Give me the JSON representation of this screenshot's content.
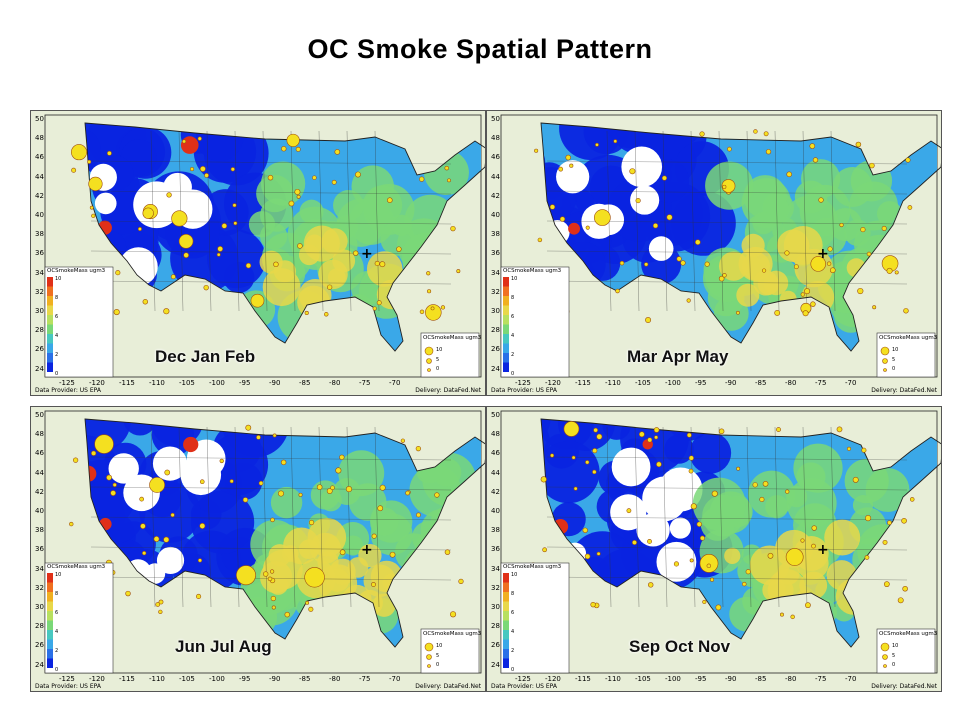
{
  "title": "OC Smoke Spatial Pattern",
  "panels": [
    {
      "season": "Dec Jan Feb"
    },
    {
      "season": "Mar Apr May"
    },
    {
      "season": "Jun Jul Aug"
    },
    {
      "season": "Sep Oct Nov"
    }
  ],
  "map": {
    "y_ticks": [
      "50",
      "48",
      "46",
      "44",
      "42",
      "40",
      "38",
      "36",
      "34",
      "32",
      "30",
      "28",
      "26",
      "24"
    ],
    "x_ticks": [
      "-125",
      "-120",
      "-115",
      "-110",
      "-105",
      "-100",
      "-95",
      "-90",
      "-85",
      "-80",
      "-75",
      "-70"
    ],
    "provider": "Data Provider: US EPA",
    "delivery": "Delivery: DataFed.Net",
    "colorbar_title": "OCSmokeMass ugm3",
    "colorbar_ticks": [
      "10",
      "8",
      "6",
      "4",
      "2",
      "0"
    ],
    "size_legend_title": "OCSmokeMass ugm3",
    "size_legend_values": [
      "10",
      "5",
      "0"
    ]
  },
  "colors": {
    "background": "#e8eed8",
    "low": "#0a24e0",
    "mid_low": "#3aa8e8",
    "mid": "#7ad878",
    "mid_high": "#e8d84a",
    "high": "#e03018"
  }
}
